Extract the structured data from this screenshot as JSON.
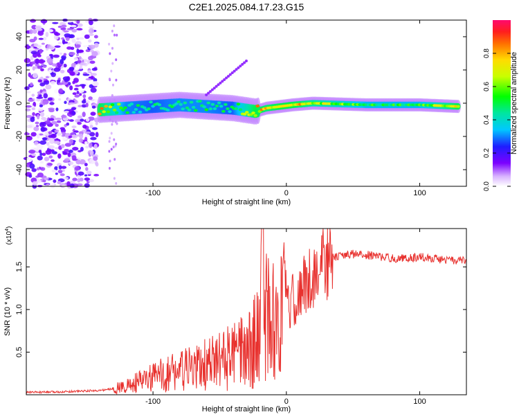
{
  "title": "C2E1.2025.084.17.23.G15",
  "chart_data": [
    {
      "type": "heatmap",
      "xlabel": "Height of straight line (km)",
      "ylabel": "Frequency (Hz)",
      "xlim": [
        -195,
        135
      ],
      "ylim": [
        -50,
        50
      ],
      "xticks": [
        -100,
        0,
        100
      ],
      "yticks": [
        -40,
        -20,
        0,
        20,
        40
      ],
      "colorbar": {
        "label": "Normalized spectral amplitude",
        "range": [
          0,
          1
        ],
        "ticks": [
          0.0,
          0.2,
          0.4,
          0.6,
          0.8
        ]
      },
      "grid": false,
      "description_points": [
        {
          "x": -140,
          "y": -4,
          "amp": 0.9
        },
        {
          "x": -120,
          "y": -3,
          "amp": 0.55
        },
        {
          "x": -100,
          "y": -2,
          "amp": 0.5
        },
        {
          "x": -80,
          "y": -1,
          "amp": 0.55
        },
        {
          "x": -60,
          "y": -2,
          "amp": 0.55
        },
        {
          "x": -40,
          "y": -3,
          "amp": 0.5
        },
        {
          "x": -23,
          "y": -5,
          "amp": 0.9
        },
        {
          "x": -15,
          "y": -3,
          "amp": 0.85
        },
        {
          "x": -5,
          "y": -2,
          "amp": 0.9
        },
        {
          "x": 5,
          "y": -1,
          "amp": 0.9
        },
        {
          "x": 20,
          "y": 0,
          "amp": 0.8
        },
        {
          "x": 60,
          "y": -1,
          "amp": 0.6
        },
        {
          "x": 100,
          "y": -1,
          "amp": 0.6
        },
        {
          "x": 130,
          "y": -2,
          "amp": 0.9
        }
      ]
    },
    {
      "type": "line",
      "xlabel": "Height of straight line (km)",
      "ylabel": "SNR (10 * v/v)",
      "yunit": "(x10",
      "yunit_exp": "4",
      "yunit_close": ")",
      "xlim": [
        -195,
        135
      ],
      "ylim": [
        0,
        1.95
      ],
      "xticks": [
        -100,
        0,
        100
      ],
      "yticks": [
        0.5,
        1.0,
        1.5
      ],
      "ytick_labels": [
        "0.5",
        "1.0",
        "1.5"
      ],
      "color": "#e8312e",
      "series": [
        {
          "x": [
            -195,
            -180,
            -160,
            -140,
            -130,
            -120,
            -110,
            -100,
            -90,
            -80,
            -70,
            -60,
            -50,
            -40,
            -30,
            -25,
            -20,
            -18,
            -15,
            -10,
            -5,
            0,
            5,
            10,
            15,
            20,
            25,
            30,
            35,
            40,
            50,
            60,
            70,
            80,
            90,
            100,
            110,
            120,
            130,
            135
          ],
          "y": [
            0.03,
            0.03,
            0.04,
            0.05,
            0.07,
            0.1,
            0.15,
            0.2,
            0.25,
            0.28,
            0.3,
            0.35,
            0.4,
            0.45,
            0.5,
            0.6,
            0.7,
            1.95,
            0.9,
            0.85,
            0.95,
            1.0,
            1.1,
            1.2,
            1.3,
            1.4,
            1.5,
            1.55,
            1.6,
            1.63,
            1.65,
            1.64,
            1.62,
            1.6,
            1.6,
            1.62,
            1.6,
            1.58,
            1.57,
            1.57
          ]
        }
      ]
    }
  ]
}
